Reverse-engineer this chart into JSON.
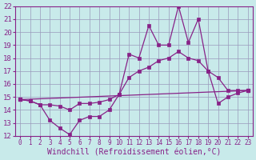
{
  "background_color": "#c8eaea",
  "grid_color": "#9999bb",
  "line_color": "#882288",
  "xlabel": "Windchill (Refroidissement éolien,°C)",
  "xlabel_fontsize": 7,
  "ytick_fontsize": 6.5,
  "xtick_fontsize": 5.5,
  "xlim": [
    -0.5,
    23.5
  ],
  "ylim": [
    12,
    22
  ],
  "yticks": [
    12,
    13,
    14,
    15,
    16,
    17,
    18,
    19,
    20,
    21,
    22
  ],
  "xticks": [
    0,
    1,
    2,
    3,
    4,
    5,
    6,
    7,
    8,
    9,
    10,
    11,
    12,
    13,
    14,
    15,
    16,
    17,
    18,
    19,
    20,
    21,
    22,
    23
  ],
  "line1_x": [
    0,
    1,
    2,
    3,
    4,
    5,
    6,
    7,
    8,
    9,
    10,
    11,
    12,
    13,
    14,
    15,
    16,
    17,
    18,
    19,
    20,
    21,
    22,
    23
  ],
  "line1_y": [
    14.8,
    14.7,
    14.4,
    13.2,
    12.6,
    12.1,
    13.2,
    13.5,
    13.5,
    14.0,
    15.2,
    18.3,
    18.0,
    20.5,
    19.0,
    19.0,
    22.0,
    19.2,
    21.0,
    17.0,
    16.5,
    15.5,
    15.5,
    15.5
  ],
  "line2_x": [
    0,
    1,
    2,
    3,
    4,
    5,
    6,
    7,
    8,
    9,
    10,
    11,
    12,
    13,
    14,
    15,
    16,
    17,
    18,
    19,
    20,
    21,
    22,
    23
  ],
  "line2_y": [
    14.8,
    14.7,
    14.4,
    14.4,
    14.3,
    14.0,
    14.5,
    14.5,
    14.6,
    14.8,
    15.2,
    16.5,
    17.0,
    17.3,
    17.8,
    18.0,
    18.5,
    18.0,
    17.8,
    17.0,
    14.5,
    15.0,
    15.3,
    15.5
  ],
  "line3_x": [
    0,
    23
  ],
  "line3_y": [
    14.8,
    15.5
  ]
}
